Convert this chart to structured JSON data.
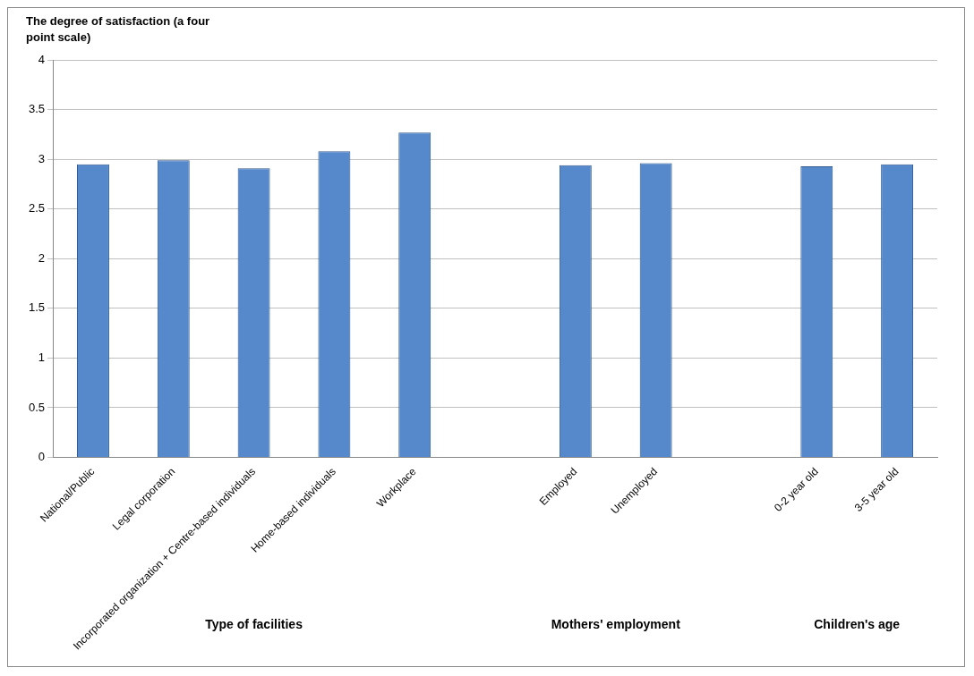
{
  "chart_data": {
    "type": "bar",
    "ylabel": "The degree of satisfaction (a four point scale)",
    "categories": [
      "National/Public",
      "Legal corporation",
      "Incorporated organization + Centre-based individuals",
      "Home-based individuals",
      "Workplace",
      null,
      "Employed",
      "Unemployed",
      null,
      "0-2 year old",
      "3-5 year old"
    ],
    "values": [
      2.95,
      2.99,
      2.91,
      3.08,
      3.27,
      null,
      2.94,
      2.96,
      null,
      2.93,
      2.95
    ],
    "color": "#5589cb",
    "ylim": [
      0,
      4
    ],
    "yticks": [
      0,
      0.5,
      1,
      1.5,
      2,
      2.5,
      3,
      3.5,
      4
    ],
    "grid": "y",
    "annotations": [
      "Type of facilities",
      "Mothers' employment",
      "Children's age"
    ]
  }
}
